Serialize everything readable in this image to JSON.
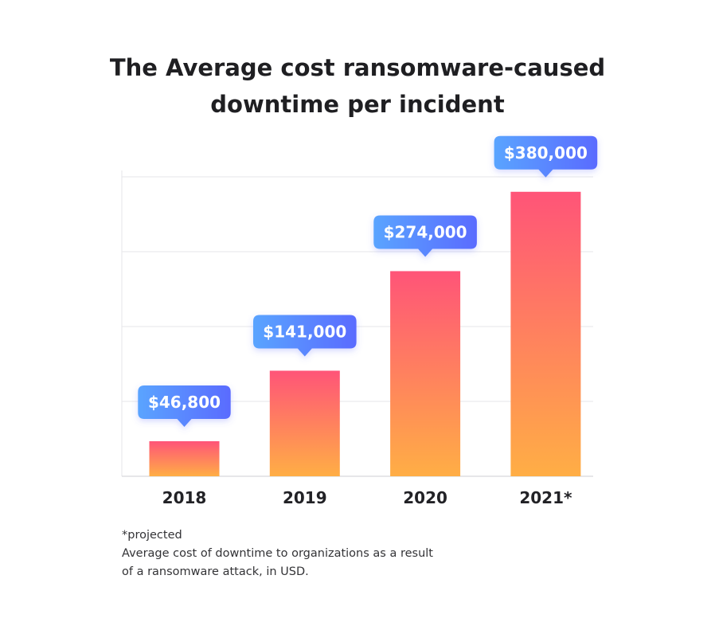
{
  "chart_data": {
    "type": "bar",
    "title_lines": [
      "The Average cost ransomware-caused",
      "downtime per incident"
    ],
    "categories": [
      "2018",
      "2019",
      "2020",
      "2021*"
    ],
    "values": [
      46800,
      141000,
      274000,
      380000
    ],
    "value_labels": [
      "$46,800",
      "$141,000",
      "$274,000",
      "$380,000"
    ],
    "ylim": [
      0,
      400000
    ],
    "grid": true,
    "xlabel": "",
    "ylabel": "",
    "colors": {
      "bar_top": "#ff5478",
      "bar_bottom": "#ffae45",
      "label_left": "#5aa4ff",
      "label_right": "#5a6bff",
      "grid": "#e6e6ea",
      "axis": "#d8d8dc",
      "tick_text": "#222226"
    }
  },
  "footnote": {
    "line1": "*projected",
    "line2": "Average cost of downtime to organizations as a result",
    "line3": "of a ransomware attack, in USD."
  }
}
